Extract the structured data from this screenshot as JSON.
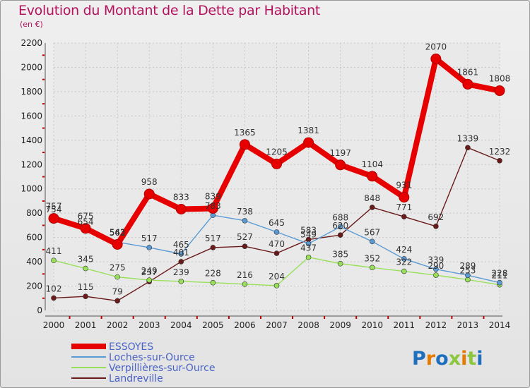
{
  "title": "Evolution du Montant de la Dette par Habitant",
  "unit": "(en €)",
  "brand": "Proxiti",
  "chart_data": {
    "type": "line",
    "title": "Evolution du Montant de la Dette par Habitant",
    "subtitle": "(en €)",
    "x": [
      "2000",
      "2001",
      "2002",
      "2003",
      "2004",
      "2005",
      "2006",
      "2007",
      "2008",
      "2009",
      "2010",
      "2011",
      "2012",
      "2013",
      "2014"
    ],
    "ylim": [
      0,
      2200
    ],
    "yticks": [
      0,
      200,
      400,
      600,
      800,
      1000,
      1200,
      1400,
      1600,
      1800,
      2000,
      2200
    ],
    "grid": true,
    "legend_position": "bottom-left",
    "series": [
      {
        "name": "ESSOYES",
        "color": "#e60000",
        "values": [
          757,
          675,
          543,
          958,
          833,
          839,
          1365,
          1205,
          1381,
          1197,
          1104,
          931,
          2070,
          1861,
          1808
        ]
      },
      {
        "name": "Loches-sur-Ource",
        "color": "#5b9bd5",
        "values": [
          754,
          654,
          562,
          517,
          465,
          783,
          738,
          645,
          549,
          688,
          567,
          424,
          339,
          289,
          228
        ]
      },
      {
        "name": "Verpillières-sur-Ource",
        "color": "#99e05a",
        "values": [
          411,
          345,
          275,
          249,
          239,
          228,
          216,
          204,
          437,
          385,
          352,
          322,
          290,
          253,
          211
        ]
      },
      {
        "name": "Landreville",
        "color": "#6b1a1a",
        "values": [
          102,
          115,
          79,
          237,
          401,
          517,
          527,
          470,
          583,
          620,
          848,
          771,
          692,
          1339,
          1232
        ]
      }
    ]
  }
}
